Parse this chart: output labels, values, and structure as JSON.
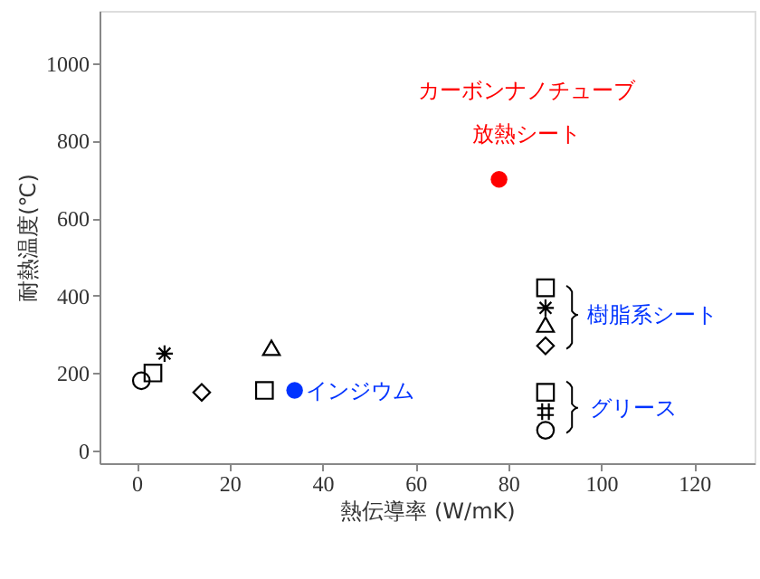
{
  "chart_data": {
    "type": "scatter",
    "xlabel": "熱伝導率 (W/mK)",
    "ylabel": "耐熱温度(℃)",
    "xlim": [
      -8,
      133
    ],
    "ylim": [
      -33,
      1135
    ],
    "xticks": [
      0,
      20,
      40,
      60,
      80,
      100,
      120
    ],
    "yticks": [
      0,
      200,
      400,
      600,
      800,
      1000
    ],
    "grid": false,
    "series": [
      {
        "marker": "circle",
        "color": "#000000",
        "x": [
          1,
          88
        ],
        "values": [
          180,
          52
        ]
      },
      {
        "marker": "square",
        "color": "#000000",
        "x": [
          3.5,
          88
        ],
        "values": [
          200,
          150
        ]
      },
      {
        "marker": "cross",
        "color": "#000000",
        "x": [
          88
        ],
        "values": [
          100
        ]
      },
      {
        "marker": "cross",
        "color": "#000000",
        "x": [
          6,
          88
        ],
        "values": [
          250,
          368
        ]
      },
      {
        "marker": "diamond",
        "color": "#000000",
        "x": [
          14,
          88
        ],
        "values": [
          150,
          270
        ]
      },
      {
        "marker": "triangle",
        "color": "#000000",
        "x": [
          29,
          88
        ],
        "values": [
          265,
          325
        ]
      },
      {
        "marker": "square",
        "color": "#000000",
        "x": [
          27.5,
          88
        ],
        "values": [
          155,
          420
        ]
      },
      {
        "marker": "circle",
        "color": "#0033ff",
        "x": [
          34
        ],
        "values": [
          155
        ]
      },
      {
        "marker": "circle",
        "color": "#ff0000",
        "x": [
          78
        ],
        "values": [
          700
        ]
      }
    ],
    "annotations": [
      "カーボンナノチューブ",
      "放熱シート",
      {
        "text": "インジウム",
        "x": 34,
        "y": 155
      },
      "樹脂系シート",
      "グリース"
    ]
  }
}
